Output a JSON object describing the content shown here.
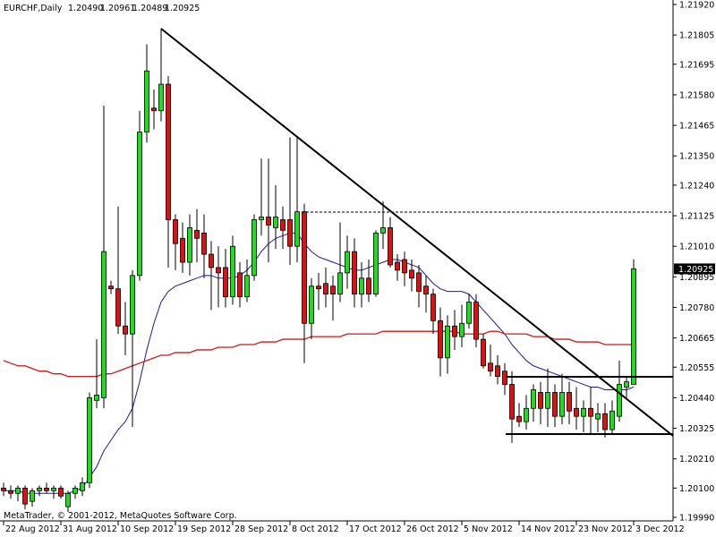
{
  "chart_data": {
    "type": "candlestick",
    "symbol": "EURCHF,Daily",
    "ohlc_labels": [
      "1.20490",
      "1.20961",
      "1.20489",
      "1.20925"
    ],
    "footer": "MetaTrader, © 2001-2012, MetaQuotes Software Corp.",
    "categories": [
      "22 Aug 2012",
      null,
      null,
      null,
      null,
      null,
      null,
      null,
      "31 Aug 2012",
      null,
      null,
      null,
      null,
      null,
      null,
      null,
      "10 Sep 2012",
      null,
      null,
      null,
      null,
      null,
      null,
      null,
      "19 Sep 2012",
      null,
      null,
      null,
      null,
      null,
      null,
      null,
      "28 Sep 2012",
      null,
      null,
      null,
      null,
      null,
      null,
      null,
      "8 Oct 2012",
      null,
      null,
      null,
      null,
      null,
      null,
      null,
      "17 Oct 2012",
      null,
      null,
      null,
      null,
      null,
      null,
      null,
      "26 Oct 2012",
      null,
      null,
      null,
      null,
      null,
      null,
      null,
      "5 Nov 2012",
      null,
      null,
      null,
      null,
      null,
      null,
      null,
      "14 Nov 2012",
      null,
      null,
      null,
      null,
      null,
      null,
      null,
      "23 Nov 2012",
      null,
      null,
      null,
      null,
      null,
      null,
      null,
      "3 Dec 2012"
    ],
    "open": [
      1.201,
      1.2009,
      1.2008,
      1.201,
      1.2005,
      1.2009,
      1.201,
      1.2009,
      1.201,
      1.2003,
      1.2008,
      1.2009,
      1.2012,
      1.2043,
      1.2044,
      1.2086,
      1.2085,
      1.2071,
      1.2068,
      1.209,
      1.2144,
      1.2153,
      1.2152,
      1.2162,
      1.2111,
      1.2104,
      1.2095,
      1.2107,
      1.2106,
      1.2098,
      1.2093,
      1.2093,
      1.2082,
      1.2091,
      1.2082,
      1.209,
      1.2111,
      1.2112,
      1.2108,
      1.2111,
      1.2111,
      1.2101,
      1.2114,
      1.2072,
      1.2086,
      1.2087,
      1.2086,
      1.2083,
      1.2091,
      1.2099,
      1.2083,
      1.2089,
      1.2083,
      1.2106,
      1.2108,
      1.2095,
      1.2096,
      1.2092,
      1.2091,
      1.2086,
      1.2083,
      1.2073,
      1.2059,
      1.2071,
      1.2067,
      1.2072,
      1.208,
      1.2066,
      1.2057,
      1.2056,
      1.2054,
      1.2049,
      1.2037,
      1.2035,
      1.204,
      1.2046,
      1.204,
      1.2046,
      1.2037,
      1.2046,
      1.204,
      1.2037,
      1.204,
      1.2036,
      1.2038,
      1.2032,
      1.2037,
      1.2048,
      1.2049
    ],
    "high": [
      1.2012,
      1.2011,
      1.2011,
      1.2011,
      1.201,
      1.2011,
      1.2012,
      1.2011,
      1.2011,
      1.2009,
      1.2011,
      1.2014,
      1.2046,
      1.2066,
      1.2154,
      1.2088,
      1.2116,
      1.208,
      1.2092,
      1.2152,
      1.2177,
      1.216,
      1.2183,
      1.2165,
      1.2113,
      1.211,
      1.2113,
      1.2115,
      1.2113,
      1.2103,
      1.2101,
      1.21,
      1.2105,
      1.2095,
      1.2096,
      1.2113,
      1.2134,
      1.2134,
      1.2124,
      1.2116,
      1.2142,
      1.2142,
      1.2117,
      1.2089,
      1.2091,
      1.2093,
      1.209,
      1.211,
      1.2105,
      1.2104,
      1.2095,
      1.2096,
      1.2107,
      1.2118,
      1.2112,
      1.2098,
      1.2099,
      1.2096,
      1.2094,
      1.209,
      1.2085,
      1.2078,
      1.2075,
      1.2077,
      1.2079,
      1.2083,
      1.2083,
      1.2068,
      1.2064,
      1.206,
      1.2057,
      1.2054,
      1.2042,
      1.2045,
      1.2049,
      1.205,
      1.2055,
      1.2049,
      1.2053,
      1.205,
      1.2048,
      1.2043,
      1.2048,
      1.2042,
      1.2042,
      1.2043,
      1.2058,
      1.2052,
      1.20961
    ],
    "low": [
      1.2007,
      1.2006,
      1.2005,
      1.2002,
      1.2003,
      1.2007,
      1.2008,
      1.2006,
      1.2006,
      1.2001,
      1.2006,
      1.2007,
      1.201,
      1.204,
      1.204,
      1.2083,
      1.2068,
      1.206,
      1.2033,
      1.2088,
      1.214,
      1.2145,
      1.2148,
      1.2093,
      1.2092,
      1.2091,
      1.209,
      1.2095,
      1.2089,
      1.2077,
      1.2078,
      1.2078,
      1.2079,
      1.2078,
      1.208,
      1.2088,
      1.2105,
      1.2095,
      1.21,
      1.21,
      1.2094,
      1.2095,
      1.2057,
      1.2066,
      1.2077,
      1.2078,
      1.2073,
      1.208,
      1.2085,
      1.2078,
      1.2078,
      1.208,
      1.2082,
      1.21,
      1.2093,
      1.2088,
      1.2086,
      1.2084,
      1.2078,
      1.2076,
      1.2068,
      1.2052,
      1.2053,
      1.2062,
      1.2063,
      1.207,
      1.2063,
      1.2055,
      1.2052,
      1.2049,
      1.2045,
      1.2027,
      1.2033,
      1.2032,
      1.2035,
      1.2034,
      1.2033,
      1.2033,
      1.2034,
      1.2034,
      1.2032,
      1.2031,
      1.203,
      1.2031,
      1.2029,
      1.203,
      1.2035,
      1.2044,
      1.20489
    ],
    "close": [
      1.2009,
      1.2008,
      1.201,
      1.2004,
      1.2009,
      1.201,
      1.2009,
      1.201,
      1.2007,
      1.2008,
      1.201,
      1.2012,
      1.2044,
      1.2045,
      1.2099,
      1.2085,
      1.2071,
      1.2068,
      1.209,
      1.2144,
      1.2167,
      1.2152,
      1.2162,
      1.2111,
      1.2102,
      1.2095,
      1.2108,
      1.2104,
      1.2098,
      1.2093,
      1.2091,
      1.2082,
      1.2101,
      1.2082,
      1.209,
      1.2111,
      1.2112,
      1.2109,
      1.2112,
      1.2107,
      1.2101,
      1.2114,
      1.2072,
      1.2086,
      1.2085,
      1.2083,
      1.2083,
      1.2091,
      1.2099,
      1.2083,
      1.2089,
      1.2083,
      1.2106,
      1.2108,
      1.2094,
      1.2092,
      1.2091,
      1.2089,
      1.2084,
      1.2083,
      1.2073,
      1.2059,
      1.2071,
      1.2067,
      1.2072,
      1.208,
      1.2066,
      1.2056,
      1.2054,
      1.2052,
      1.2049,
      1.2036,
      1.2035,
      1.204,
      1.2047,
      1.204,
      1.2046,
      1.2037,
      1.2046,
      1.2039,
      1.2037,
      1.204,
      1.2037,
      1.2038,
      1.2032,
      1.2039,
      1.2049,
      1.205,
      1.20925
    ],
    "up_color": "#1edc1e",
    "down_color": "#e01010",
    "moving_averages": [
      {
        "color": "#1a1a9c",
        "values": [
          1.2009,
          1.2009,
          1.2009,
          1.2008,
          1.2008,
          1.2008,
          1.2008,
          1.2008,
          1.2008,
          1.2008,
          1.2009,
          1.201,
          1.2014,
          1.2018,
          1.2024,
          1.2028,
          1.2032,
          1.2035,
          1.204,
          1.205,
          1.2062,
          1.2072,
          1.208,
          1.2084,
          1.2086,
          1.2087,
          1.2088,
          1.2089,
          1.209,
          1.209,
          1.2089,
          1.2089,
          1.2089,
          1.209,
          1.2092,
          1.2095,
          1.2099,
          1.2102,
          1.2104,
          1.2105,
          1.2106,
          1.2106,
          1.2102,
          1.2099,
          1.2097,
          1.2096,
          1.2095,
          1.2094,
          1.2093,
          1.2092,
          1.2092,
          1.2093,
          1.2094,
          1.2095,
          1.2096,
          1.2096,
          1.2095,
          1.2094,
          1.2093,
          1.209,
          1.2087,
          1.2085,
          1.2084,
          1.2084,
          1.2084,
          1.2083,
          1.208,
          1.2077,
          1.2074,
          1.2071,
          1.2068,
          1.2064,
          1.2061,
          1.2058,
          1.2056,
          1.2055,
          1.2054,
          1.2053,
          1.2052,
          1.2051,
          1.205,
          1.2049,
          1.2048,
          1.2048,
          1.2047,
          1.2047,
          1.2047,
          1.2047,
          1.2048
        ]
      },
      {
        "color": "#d01818",
        "values": [
          1.2058,
          1.2057,
          1.2056,
          1.2056,
          1.2055,
          1.2054,
          1.2054,
          1.2053,
          1.2053,
          1.2052,
          1.2052,
          1.2052,
          1.2052,
          1.2052,
          1.2053,
          1.2053,
          1.2054,
          1.2055,
          1.2056,
          1.2057,
          1.2058,
          1.2059,
          1.206,
          1.206,
          1.2061,
          1.2061,
          1.2061,
          1.2062,
          1.2062,
          1.2062,
          1.2063,
          1.2063,
          1.2063,
          1.2064,
          1.2064,
          1.2064,
          1.2065,
          1.2065,
          1.2065,
          1.2066,
          1.2066,
          1.2066,
          1.2066,
          1.2067,
          1.2067,
          1.2067,
          1.2067,
          1.2067,
          1.2068,
          1.2068,
          1.2068,
          1.2068,
          1.2068,
          1.2069,
          1.2069,
          1.2069,
          1.2069,
          1.2069,
          1.2069,
          1.2069,
          1.2069,
          1.2069,
          1.2069,
          1.2069,
          1.2068,
          1.2068,
          1.2068,
          1.2068,
          1.2069,
          1.2069,
          1.2068,
          1.2068,
          1.2068,
          1.2068,
          1.2067,
          1.2067,
          1.2067,
          1.2066,
          1.2066,
          1.2066,
          1.2065,
          1.2065,
          1.2065,
          1.2065,
          1.2064,
          1.2064,
          1.2064,
          1.2064,
          1.2064
        ]
      }
    ],
    "ylim": [
      1.1999,
      1.2192
    ],
    "yticks": [
      {
        "value": 1.2192,
        "label": "1.21920"
      },
      {
        "value": 1.21805,
        "label": "1.21805"
      },
      {
        "value": 1.21695,
        "label": "1.21695"
      },
      {
        "value": 1.2158,
        "label": "1.21580"
      },
      {
        "value": 1.21465,
        "label": "1.21465"
      },
      {
        "value": 1.2135,
        "label": "1.21350"
      },
      {
        "value": 1.2124,
        "label": "1.21240"
      },
      {
        "value": 1.21125,
        "label": "1.21125"
      },
      {
        "value": 1.2101,
        "label": "1.21010"
      },
      {
        "value": 1.20895,
        "label": "1.20895"
      },
      {
        "value": 1.2078,
        "label": "1.20780"
      },
      {
        "value": 1.20665,
        "label": "1.20665"
      },
      {
        "value": 1.20555,
        "label": "1.20555"
      },
      {
        "value": 1.2044,
        "label": "1.20440"
      },
      {
        "value": 1.20325,
        "label": "1.20325"
      },
      {
        "value": 1.2021,
        "label": "1.20210"
      },
      {
        "value": 1.201,
        "label": "1.20100"
      },
      {
        "value": 1.1999,
        "label": "1.19990"
      }
    ]
  }
}
